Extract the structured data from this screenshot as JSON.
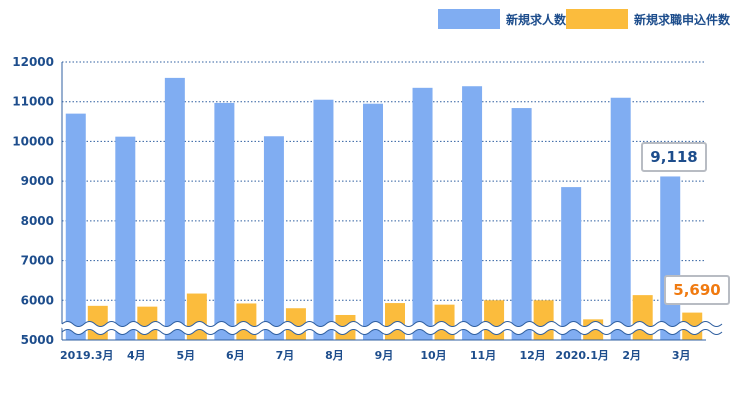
{
  "chart_data": {
    "type": "bar",
    "categories": [
      "2019.3月",
      "4月",
      "5月",
      "6月",
      "7月",
      "8月",
      "9月",
      "10月",
      "11月",
      "12月",
      "2020.1月",
      "2月",
      "3月"
    ],
    "series": [
      {
        "name": "新規求人数",
        "color": "#80adf2",
        "values": [
          10700,
          10120,
          11600,
          10970,
          10130,
          11050,
          10950,
          11350,
          11390,
          10840,
          8850,
          11100,
          9118
        ]
      },
      {
        "name": "新規求職申込件数",
        "color": "#fbbc3d",
        "values": [
          5860,
          5840,
          6170,
          5920,
          5800,
          5630,
          5930,
          5890,
          6000,
          6000,
          5520,
          6130,
          5690
        ]
      }
    ],
    "ylim": [
      5000,
      12000
    ],
    "yticks": [
      5000,
      6000,
      7000,
      8000,
      9000,
      10000,
      11000,
      12000
    ],
    "axis_break": true,
    "grid": "dotted horizontal",
    "legend_position": "top-right",
    "title": "",
    "xlabel": "",
    "ylabel": "",
    "annotations": [
      {
        "series": 0,
        "index": 12,
        "text": "9,118",
        "color": "#1d4d8c"
      },
      {
        "series": 1,
        "index": 12,
        "text": "5,690",
        "color": "#f07a10"
      }
    ]
  }
}
